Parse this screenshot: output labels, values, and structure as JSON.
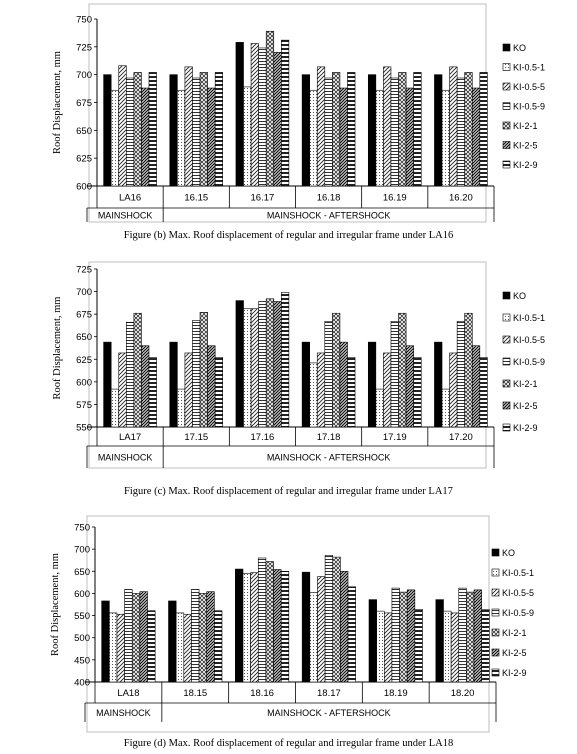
{
  "chart_data": [
    {
      "type": "bar",
      "title": "",
      "ylabel": "Roof Displacement, mm",
      "ylim": [
        600,
        750
      ],
      "yticks": [
        600,
        625,
        650,
        675,
        700,
        725,
        750
      ],
      "categories": [
        "LA16",
        "16.15",
        "16.17",
        "16.18",
        "16.19",
        "16.20"
      ],
      "groups": [
        {
          "label": "MAINSHOCK",
          "span": 1
        },
        {
          "label": "MAINSHOCK - AFTERSHOCK",
          "span": 5
        }
      ],
      "legend_position": "right",
      "series": [
        {
          "name": "KO",
          "values": [
            700,
            700,
            729,
            700,
            700,
            700
          ]
        },
        {
          "name": "KI-0.5-1",
          "values": [
            686,
            686,
            689,
            686,
            686,
            686
          ]
        },
        {
          "name": "KI-0.5-5",
          "values": [
            708,
            707,
            728,
            707,
            707,
            707
          ]
        },
        {
          "name": "KI-0.5-9",
          "values": [
            697,
            697,
            724,
            697,
            697,
            697
          ]
        },
        {
          "name": "KI-2-1",
          "values": [
            702,
            702,
            739,
            702,
            702,
            702
          ]
        },
        {
          "name": "KI-2-5",
          "values": [
            688,
            688,
            720,
            688,
            688,
            688
          ]
        },
        {
          "name": "KI-2-9",
          "values": [
            702,
            702,
            731,
            702,
            702,
            702
          ]
        }
      ],
      "caption": "Figure (b) Max. Roof displacement of regular and irregular frame under LA16"
    },
    {
      "type": "bar",
      "title": "",
      "ylabel": "Roof Displacement, mm",
      "ylim": [
        550,
        725
      ],
      "yticks": [
        550,
        575,
        600,
        625,
        650,
        675,
        700,
        725
      ],
      "categories": [
        "LA17",
        "17.15",
        "17.16",
        "17.18",
        "17.19",
        "17.20"
      ],
      "groups": [
        {
          "label": "MAINSHOCK",
          "span": 1
        },
        {
          "label": "MAINSHOCK - AFTERSHOCK",
          "span": 5
        }
      ],
      "legend_position": "right",
      "series": [
        {
          "name": "KO",
          "values": [
            644,
            644,
            690,
            644,
            644,
            644
          ]
        },
        {
          "name": "KI-0.5-1",
          "values": [
            592,
            592,
            681,
            621,
            592,
            592
          ]
        },
        {
          "name": "KI-0.5-5",
          "values": [
            632,
            632,
            681,
            632,
            632,
            632
          ]
        },
        {
          "name": "KI-0.5-9",
          "values": [
            666,
            668,
            689,
            667,
            667,
            667
          ]
        },
        {
          "name": "KI-2-1",
          "values": [
            676,
            677,
            692,
            676,
            676,
            676
          ]
        },
        {
          "name": "KI-2-5",
          "values": [
            640,
            640,
            689,
            644,
            640,
            640
          ]
        },
        {
          "name": "KI-2-9",
          "values": [
            627,
            627,
            699,
            627,
            627,
            627
          ]
        }
      ],
      "caption": "Figure (c) Max. Roof displacement of regular and irregular frame under LA17"
    },
    {
      "type": "bar",
      "title": "",
      "ylabel": "Roof Displacement, mm",
      "ylim": [
        400,
        750
      ],
      "yticks": [
        400,
        450,
        500,
        550,
        600,
        650,
        700,
        750
      ],
      "categories": [
        "LA18",
        "18.15",
        "18.16",
        "18.17",
        "18.19",
        "18.20"
      ],
      "groups": [
        {
          "label": "MAINSHOCK",
          "span": 1
        },
        {
          "label": "MAINSHOCK - AFTERSHOCK",
          "span": 5
        }
      ],
      "legend_position": "right",
      "series": [
        {
          "name": "KO",
          "values": [
            583,
            583,
            655,
            648,
            586,
            586
          ]
        },
        {
          "name": "KI-0.5-1",
          "values": [
            556,
            556,
            645,
            602,
            560,
            560
          ]
        },
        {
          "name": "KI-0.5-5",
          "values": [
            553,
            553,
            647,
            638,
            556,
            556
          ]
        },
        {
          "name": "KI-0.5-9",
          "values": [
            609,
            609,
            680,
            686,
            612,
            612
          ]
        },
        {
          "name": "KI-2-1",
          "values": [
            600,
            600,
            672,
            682,
            603,
            603
          ]
        },
        {
          "name": "KI-2-5",
          "values": [
            604,
            604,
            654,
            650,
            608,
            608
          ]
        },
        {
          "name": "KI-2-9",
          "values": [
            561,
            561,
            650,
            615,
            564,
            564
          ]
        }
      ],
      "caption": "Figure (d) Max. Roof displacement of regular and irregular frame under LA18"
    }
  ]
}
